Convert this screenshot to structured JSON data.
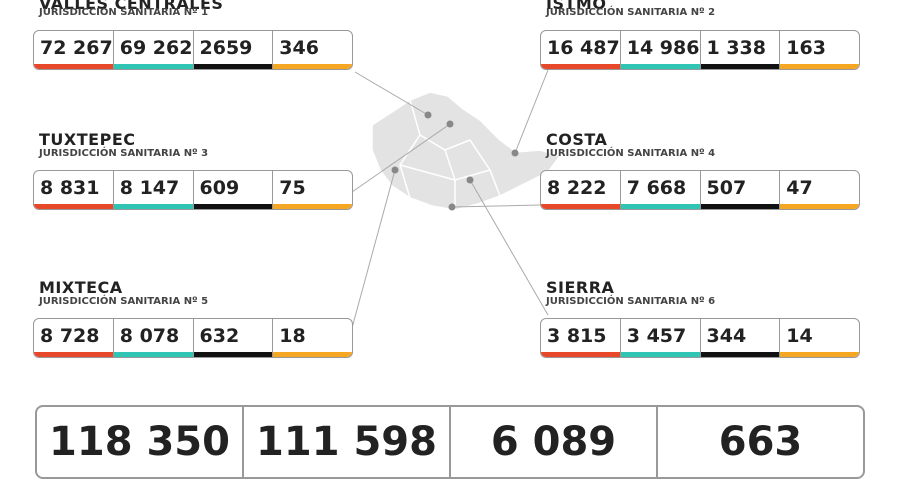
{
  "regions": [
    {
      "name": "VALLES CENTRALES",
      "subtitle": "JURISDICCIÓN SANITARIA Nº 1",
      "values": [
        "72 267",
        "69 262",
        "2659",
        "346"
      ]
    },
    {
      "name": "ISTMO",
      "subtitle": "JURISDICCIÓN SANITARIA Nº 2",
      "values": [
        "16 487",
        "14 986",
        "1 338",
        "163"
      ]
    },
    {
      "name": "TUXTEPEC",
      "subtitle": "JURISDICCIÓN SANITARIA Nº 3",
      "values": [
        "8 831",
        "8 147",
        "609",
        "75"
      ]
    },
    {
      "name": "COSTA",
      "subtitle": "JURISDICCIÓN SANITARIA Nº 4",
      "values": [
        "8 222",
        "7 668",
        "507",
        "47"
      ]
    },
    {
      "name": "MIXTECA",
      "subtitle": "JURISDICCIÓN SANITARIA Nº 5",
      "values": [
        "8 728",
        "8 078",
        "632",
        "18"
      ]
    },
    {
      "name": "SIERRA",
      "subtitle": "JURISDICCIÓN SANITARIA Nº 6",
      "values": [
        "3 815",
        "3 457",
        "344",
        "14"
      ]
    }
  ],
  "totals": [
    "118 350",
    "111 598",
    "6 089",
    "663"
  ]
}
